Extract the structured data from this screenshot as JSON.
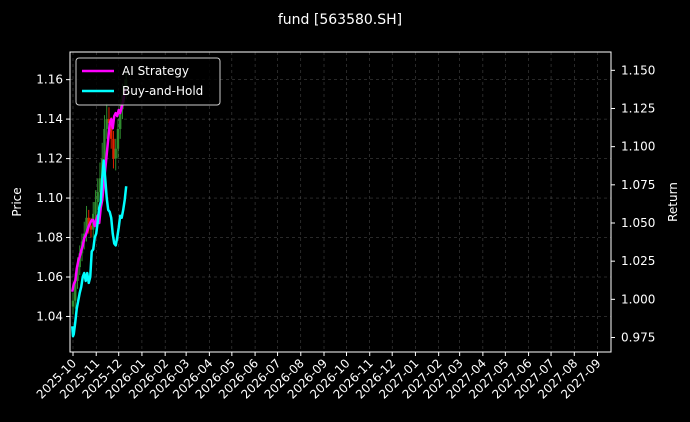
{
  "chart_data": {
    "type": "line",
    "title": "fund [563580.SH]",
    "xlabel": "",
    "ylabel": "Price",
    "y2label": "Return",
    "x_ticks": [
      "2025-10",
      "2025-11",
      "2025-12",
      "2026-01",
      "2026-02",
      "2026-03",
      "2026-04",
      "2026-05",
      "2026-06",
      "2026-07",
      "2026-08",
      "2026-09",
      "2026-10",
      "2026-11",
      "2026-12",
      "2027-01",
      "2027-02",
      "2027-03",
      "2027-04",
      "2027-05",
      "2027-06",
      "2027-07",
      "2027-08",
      "2027-09"
    ],
    "xlim": [
      "2025-09-27",
      "2027-09-19"
    ],
    "ylim": [
      1.022,
      1.174
    ],
    "y2lim": [
      0.9655,
      1.162
    ],
    "y_ticks": [
      "1.04",
      "1.06",
      "1.08",
      "1.10",
      "1.12",
      "1.14",
      "1.16"
    ],
    "y2_ticks": [
      "0.975",
      "1.000",
      "1.025",
      "1.050",
      "1.075",
      "1.100",
      "1.125",
      "1.150"
    ],
    "grid": true,
    "legend_position": "top-left",
    "series": [
      {
        "name": "AI Strategy",
        "color": "#ff00ff",
        "axis": "right",
        "x": [
          "2025-09-30",
          "2025-10-02",
          "2025-10-04",
          "2025-10-06",
          "2025-10-08",
          "2025-10-10",
          "2025-10-12",
          "2025-10-14",
          "2025-10-16",
          "2025-10-18",
          "2025-10-20",
          "2025-10-22",
          "2025-10-24",
          "2025-10-26",
          "2025-10-28",
          "2025-10-30",
          "2025-11-01",
          "2025-11-03",
          "2025-11-05",
          "2025-11-07",
          "2025-11-09",
          "2025-11-11",
          "2025-11-13",
          "2025-11-15",
          "2025-11-17",
          "2025-11-19",
          "2025-11-21",
          "2025-11-23",
          "2025-11-25",
          "2025-11-27",
          "2025-11-29",
          "2025-12-01",
          "2025-12-03",
          "2025-12-05",
          "2025-12-07",
          "2025-12-09",
          "2025-12-11"
        ],
        "y": [
          1.005,
          1.01,
          1.012,
          1.02,
          1.025,
          1.028,
          1.032,
          1.035,
          1.04,
          1.042,
          1.045,
          1.048,
          1.05,
          1.052,
          1.052,
          1.048,
          1.052,
          1.055,
          1.05,
          1.06,
          1.065,
          1.075,
          1.085,
          1.095,
          1.105,
          1.115,
          1.118,
          1.112,
          1.12,
          1.122,
          1.12,
          1.124,
          1.122,
          1.126,
          1.13,
          1.136,
          1.138
        ]
      },
      {
        "name": "Buy-and-Hold",
        "color": "#00ffff",
        "axis": "left",
        "x": [
          "2025-09-30",
          "2025-10-01",
          "2025-10-02",
          "2025-10-04",
          "2025-10-06",
          "2025-10-08",
          "2025-10-10",
          "2025-10-12",
          "2025-10-14",
          "2025-10-16",
          "2025-10-18",
          "2025-10-20",
          "2025-10-22",
          "2025-10-24",
          "2025-10-26",
          "2025-10-28",
          "2025-10-30",
          "2025-11-01",
          "2025-11-03",
          "2025-11-05",
          "2025-11-07",
          "2025-11-09",
          "2025-11-11",
          "2025-11-13",
          "2025-11-15",
          "2025-11-17",
          "2025-11-19",
          "2025-11-21",
          "2025-11-23",
          "2025-11-25",
          "2025-11-27",
          "2025-11-29",
          "2025-12-01",
          "2025-12-03",
          "2025-12-05",
          "2025-12-07",
          "2025-12-09",
          "2025-12-11"
        ],
        "y": [
          1.035,
          1.03,
          1.031,
          1.037,
          1.044,
          1.048,
          1.052,
          1.055,
          1.06,
          1.062,
          1.058,
          1.062,
          1.057,
          1.06,
          1.073,
          1.074,
          1.08,
          1.082,
          1.088,
          1.095,
          1.098,
          1.11,
          1.119,
          1.11,
          1.1,
          1.094,
          1.093,
          1.09,
          1.082,
          1.077,
          1.076,
          1.08,
          1.085,
          1.091,
          1.09,
          1.094,
          1.099,
          1.106
        ]
      }
    ],
    "candles": {
      "colors": {
        "up": "#2e8b2e",
        "down": "#e02000"
      },
      "x": [
        "2025-10-01",
        "2025-10-04",
        "2025-10-07",
        "2025-10-10",
        "2025-10-13",
        "2025-10-16",
        "2025-10-19",
        "2025-10-22",
        "2025-10-25",
        "2025-10-28",
        "2025-10-31",
        "2025-11-03",
        "2025-11-06",
        "2025-11-09",
        "2025-11-12",
        "2025-11-15",
        "2025-11-18",
        "2025-11-21",
        "2025-11-24",
        "2025-11-27",
        "2025-11-30",
        "2025-12-03",
        "2025-12-06",
        "2025-12-09",
        "2025-12-11"
      ],
      "open": [
        1.045,
        1.048,
        1.058,
        1.065,
        1.072,
        1.078,
        1.082,
        1.09,
        1.086,
        1.084,
        1.092,
        1.098,
        1.103,
        1.11,
        1.12,
        1.135,
        1.14,
        1.138,
        1.13,
        1.12,
        1.125,
        1.135,
        1.145,
        1.152,
        1.155
      ],
      "close": [
        1.048,
        1.058,
        1.065,
        1.072,
        1.078,
        1.082,
        1.09,
        1.086,
        1.084,
        1.092,
        1.098,
        1.103,
        1.11,
        1.12,
        1.135,
        1.14,
        1.138,
        1.13,
        1.12,
        1.125,
        1.135,
        1.145,
        1.152,
        1.155,
        1.16
      ],
      "high": [
        1.052,
        1.062,
        1.07,
        1.076,
        1.082,
        1.088,
        1.096,
        1.094,
        1.09,
        1.098,
        1.104,
        1.11,
        1.118,
        1.128,
        1.142,
        1.148,
        1.146,
        1.141,
        1.134,
        1.13,
        1.14,
        1.15,
        1.158,
        1.16,
        1.164
      ],
      "low": [
        1.041,
        1.044,
        1.054,
        1.061,
        1.068,
        1.074,
        1.078,
        1.082,
        1.08,
        1.08,
        1.088,
        1.094,
        1.099,
        1.105,
        1.115,
        1.13,
        1.132,
        1.125,
        1.115,
        1.114,
        1.12,
        1.13,
        1.14,
        1.148,
        1.15
      ]
    }
  }
}
